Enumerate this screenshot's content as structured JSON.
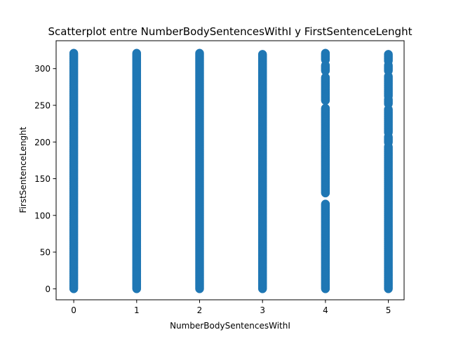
{
  "chart_data": {
    "type": "scatter",
    "title": "Scatterplot entre NumberBodySentencesWithI y FirstSentenceLenght",
    "xlabel": "NumberBodySentencesWithI",
    "ylabel": "FirstSentenceLenght",
    "xlim": [
      -0.28,
      5.25
    ],
    "ylim": [
      -15,
      338
    ],
    "xticks": [
      0,
      1,
      2,
      3,
      4,
      5
    ],
    "yticks": [
      0,
      50,
      100,
      150,
      200,
      250,
      300
    ],
    "grid": false,
    "legend": "none",
    "color": "#1f77b4",
    "series": [
      {
        "x": 0,
        "y_min": 0,
        "y_max": 322
      },
      {
        "x": 1,
        "y_min": 0,
        "y_max": 322
      },
      {
        "x": 2,
        "y_min": 0,
        "y_max": 322
      },
      {
        "x": 3,
        "y_min": 0,
        "y_max": 320
      },
      {
        "x": 4,
        "y_min": 0,
        "y_max": 322,
        "gaps": [
          [
            116,
            130
          ],
          [
            247,
            256
          ],
          [
            289,
            296
          ],
          [
            305,
            312
          ]
        ]
      },
      {
        "x": 5,
        "y_min": 0,
        "y_max": 320,
        "gaps": [
          [
            194,
            199
          ],
          [
            208,
            213
          ],
          [
            245,
            251
          ],
          [
            258,
            262
          ],
          [
            290,
            296
          ],
          [
            305,
            310
          ]
        ]
      }
    ]
  }
}
